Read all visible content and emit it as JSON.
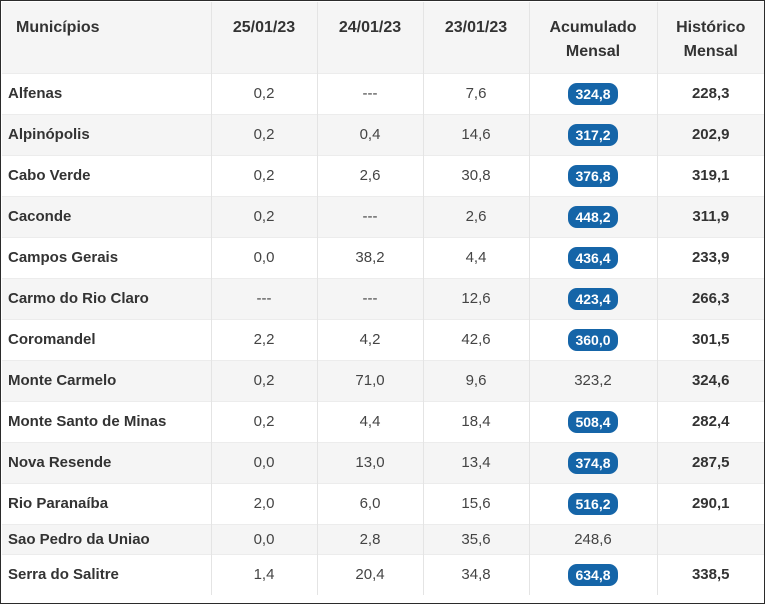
{
  "headers": [
    "Municípios",
    "25/01/23",
    "24/01/23",
    "23/01/23",
    "Acumulado Mensal",
    "Histórico Mensal"
  ],
  "header_lines": {
    "acumulado": [
      "Acumulado",
      "Mensal"
    ],
    "historico": [
      "Histórico",
      "Mensal"
    ]
  },
  "badge_color": "#1565a8",
  "rows": [
    {
      "municipio": "Alfenas",
      "d25": "0,2",
      "d24": "---",
      "d23": "7,6",
      "acumulado": "324,8",
      "acumulado_badge": true,
      "historico": "228,3"
    },
    {
      "municipio": "Alpinópolis",
      "d25": "0,2",
      "d24": "0,4",
      "d23": "14,6",
      "acumulado": "317,2",
      "acumulado_badge": true,
      "historico": "202,9"
    },
    {
      "municipio": "Cabo Verde",
      "d25": "0,2",
      "d24": "2,6",
      "d23": "30,8",
      "acumulado": "376,8",
      "acumulado_badge": true,
      "historico": "319,1"
    },
    {
      "municipio": "Caconde",
      "d25": "0,2",
      "d24": "---",
      "d23": "2,6",
      "acumulado": "448,2",
      "acumulado_badge": true,
      "historico": "311,9"
    },
    {
      "municipio": "Campos Gerais",
      "d25": "0,0",
      "d24": "38,2",
      "d23": "4,4",
      "acumulado": "436,4",
      "acumulado_badge": true,
      "historico": "233,9"
    },
    {
      "municipio": "Carmo do Rio Claro",
      "d25": "---",
      "d24": "---",
      "d23": "12,6",
      "acumulado": "423,4",
      "acumulado_badge": true,
      "historico": "266,3"
    },
    {
      "municipio": "Coromandel",
      "d25": "2,2",
      "d24": "4,2",
      "d23": "42,6",
      "acumulado": "360,0",
      "acumulado_badge": true,
      "historico": "301,5"
    },
    {
      "municipio": "Monte Carmelo",
      "d25": "0,2",
      "d24": "71,0",
      "d23": "9,6",
      "acumulado": "323,2",
      "acumulado_badge": false,
      "historico": "324,6"
    },
    {
      "municipio": "Monte Santo de Minas",
      "d25": "0,2",
      "d24": "4,4",
      "d23": "18,4",
      "acumulado": "508,4",
      "acumulado_badge": true,
      "historico": "282,4"
    },
    {
      "municipio": "Nova Resende",
      "d25": "0,0",
      "d24": "13,0",
      "d23": "13,4",
      "acumulado": "374,8",
      "acumulado_badge": true,
      "historico": "287,5"
    },
    {
      "municipio": "Rio Paranaíba",
      "d25": "2,0",
      "d24": "6,0",
      "d23": "15,6",
      "acumulado": "516,2",
      "acumulado_badge": true,
      "historico": "290,1"
    },
    {
      "municipio": "Sao Pedro da Uniao",
      "d25": "0,0",
      "d24": "2,8",
      "d23": "35,6",
      "acumulado": "248,6",
      "acumulado_badge": false,
      "historico": ""
    },
    {
      "municipio": "Serra do Salitre",
      "d25": "1,4",
      "d24": "20,4",
      "d23": "34,8",
      "acumulado": "634,8",
      "acumulado_badge": true,
      "historico": "338,5"
    }
  ]
}
